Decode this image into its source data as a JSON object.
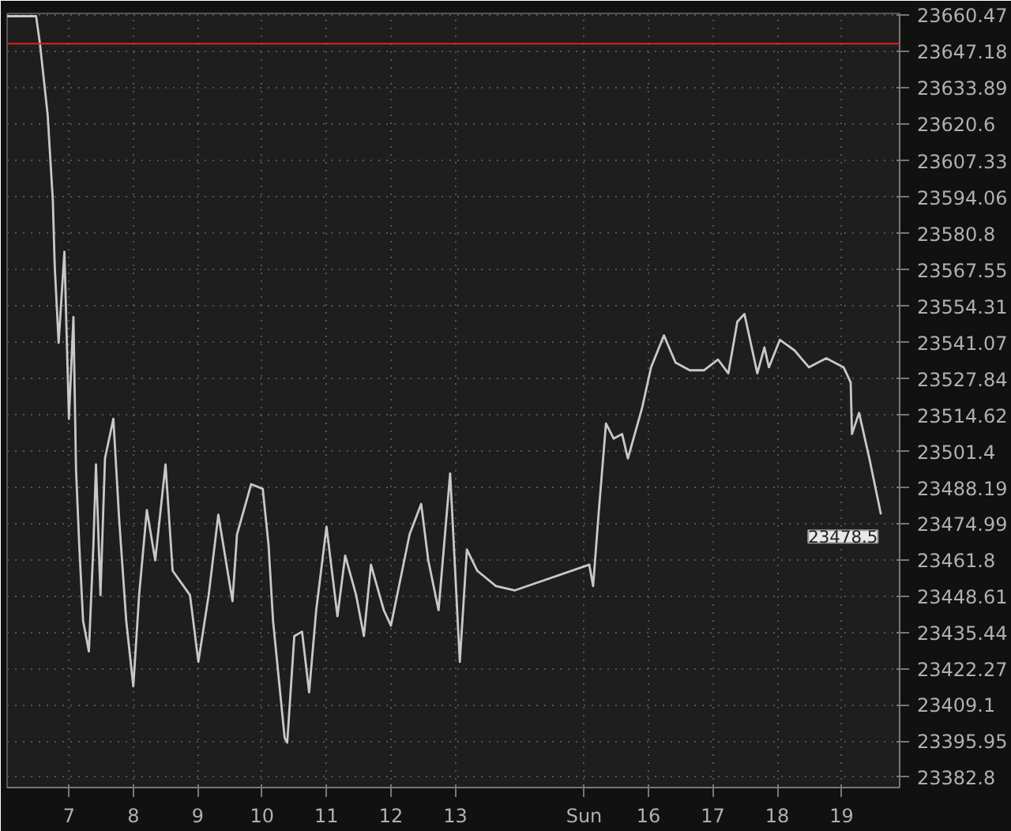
{
  "chart_data": {
    "type": "line",
    "x": [
      6.04,
      6.49,
      6.55,
      6.67,
      6.75,
      6.78,
      6.84,
      6.93,
      7.0,
      7.07,
      7.11,
      7.16,
      7.22,
      7.31,
      7.38,
      7.42,
      7.49,
      7.56,
      7.69,
      7.78,
      7.89,
      8.0,
      8.09,
      8.21,
      8.34,
      8.5,
      8.61,
      8.88,
      9.01,
      9.17,
      9.32,
      9.54,
      9.61,
      9.83,
      10.01,
      10.1,
      10.17,
      10.35,
      10.39,
      10.5,
      10.62,
      10.73,
      10.84,
      11.0,
      11.17,
      11.29,
      11.46,
      11.58,
      11.69,
      11.89,
      12.0,
      12.29,
      12.47,
      12.58,
      12.74,
      12.92,
      13.07,
      13.18,
      13.34,
      13.63,
      13.92,
      15.08,
      15.14,
      15.23,
      15.34,
      15.46,
      15.59,
      15.68,
      15.9,
      16.04,
      16.24,
      16.42,
      16.64,
      16.86,
      17.08,
      17.24,
      17.38,
      17.49,
      17.69,
      17.8,
      17.87,
      18.04,
      18.27,
      18.49,
      18.76,
      19.03,
      19.14,
      19.16,
      19.27,
      19.43,
      19.61
    ],
    "series": [
      {
        "color": "#c8c8c8",
        "values": [
          23660,
          23660,
          23650.0,
          23624.0,
          23593.0,
          23568.6,
          23541.0,
          23574.2,
          23513.3,
          23550.4,
          23495.0,
          23467.4,
          23439.7,
          23428.6,
          23467.4,
          23496.7,
          23449.1,
          23498.9,
          23513.3,
          23476.8,
          23439.7,
          23415.9,
          23449.1,
          23480.1,
          23461.8,
          23496.7,
          23458.0,
          23449.1,
          23424.8,
          23449.1,
          23478.4,
          23446.9,
          23471.2,
          23489.5,
          23487.8,
          23467.4,
          23439.7,
          23397.1,
          23395.4,
          23434.2,
          23435.8,
          23413.7,
          23443.6,
          23474.0,
          23441.4,
          23463.5,
          23449.1,
          23434.2,
          23460.2,
          23443.6,
          23438.0,
          23471.2,
          23482.3,
          23461.8,
          23443.6,
          23493.4,
          23424.8,
          23465.7,
          23458.0,
          23452.4,
          23450.8,
          23460.2,
          23452.4,
          23480.1,
          23511.6,
          23506.1,
          23507.8,
          23498.9,
          23517.2,
          23532.1,
          23543.7,
          23533.8,
          23531.0,
          23531.0,
          23534.9,
          23529.9,
          23548.7,
          23551.5,
          23529.9,
          23539.3,
          23532.1,
          23542.1,
          23538.2,
          23532.1,
          23535.4,
          23532.1,
          23526.6,
          23507.8,
          23515.5,
          23498.9,
          23478.5
        ]
      }
    ],
    "xlim": [
      6.04,
      19.9
    ],
    "xticks": [
      7,
      8,
      9,
      10,
      11,
      12,
      13,
      {
        "value": 15,
        "label": "Sun"
      },
      16,
      17,
      18,
      19
    ],
    "ylim": [
      23379,
      23661
    ],
    "yticks": [
      23660.47,
      23647.18,
      23633.89,
      23620.6,
      23607.33,
      23594.06,
      23580.8,
      23567.55,
      23554.31,
      23541.07,
      23527.84,
      23514.62,
      23501.4,
      23488.19,
      23474.99,
      23461.8,
      23448.61,
      23435.44,
      23422.27,
      23409.1,
      23395.95,
      23382.8
    ],
    "ref_lines": [
      {
        "axis": "y",
        "value": 23650.0,
        "color": "#e02020"
      }
    ],
    "annotations": [
      {
        "text": "23478.5",
        "x": 19.61,
        "y": 23478.5
      }
    ],
    "grid": true
  }
}
